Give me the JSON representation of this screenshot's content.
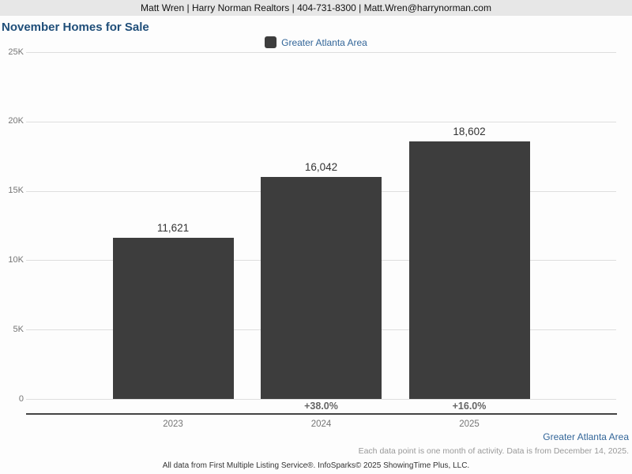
{
  "header": {
    "contact": "Matt Wren | Harry Norman Realtors | 404-731-8300 | Matt.Wren@harrynorman.com"
  },
  "title": "November Homes for Sale",
  "legend": {
    "label": "Greater Atlanta Area",
    "swatch_color": "#3d3d3d"
  },
  "chart_data": {
    "type": "bar",
    "title": "November Homes for Sale",
    "categories": [
      "2023",
      "2024",
      "2025"
    ],
    "series": [
      {
        "name": "Greater Atlanta Area",
        "values": [
          11621,
          16042,
          18602
        ]
      }
    ],
    "value_labels": [
      "11,621",
      "16,042",
      "18,602"
    ],
    "pct_change_labels": [
      "",
      "+38.0%",
      "+16.0%"
    ],
    "ylim": [
      0,
      25000
    ],
    "ytick_step": 5000,
    "ytick_labels": [
      "0",
      "5K",
      "10K",
      "15K",
      "20K",
      "25K"
    ],
    "grid": true,
    "legend_position": "top",
    "bar_color": "#3d3d3d"
  },
  "colors": {
    "title_blue": "#1f4e79",
    "link_blue": "#336699",
    "bar": "#3d3d3d",
    "gridline": "#dedede",
    "axis": "#444444",
    "tick_text": "#757575",
    "header_bg": "#e7e7e7"
  },
  "footer": {
    "area_label": "Greater Atlanta Area",
    "note": "Each data point is one month of activity. Data is from December 14, 2025.",
    "attribution": "All data from First Multiple Listing Service®. InfoSparks© 2025 ShowingTime Plus, LLC."
  }
}
